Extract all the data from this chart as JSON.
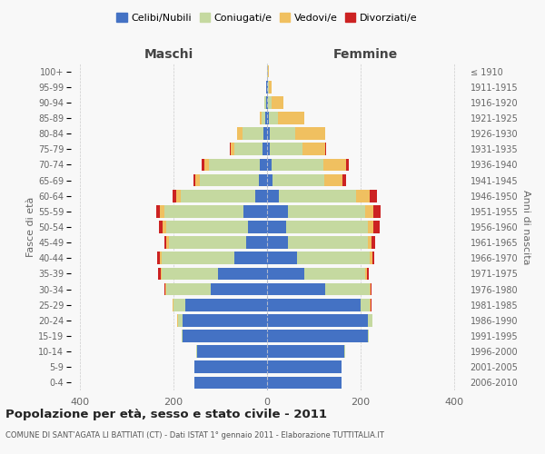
{
  "age_groups": [
    "0-4",
    "5-9",
    "10-14",
    "15-19",
    "20-24",
    "25-29",
    "30-34",
    "35-39",
    "40-44",
    "45-49",
    "50-54",
    "55-59",
    "60-64",
    "65-69",
    "70-74",
    "75-79",
    "80-84",
    "85-89",
    "90-94",
    "95-99",
    "100+"
  ],
  "birth_years": [
    "2006-2010",
    "2001-2005",
    "1996-2000",
    "1991-1995",
    "1986-1990",
    "1981-1985",
    "1976-1980",
    "1971-1975",
    "1966-1970",
    "1961-1965",
    "1956-1960",
    "1951-1955",
    "1946-1950",
    "1941-1945",
    "1936-1940",
    "1931-1935",
    "1926-1930",
    "1921-1925",
    "1916-1920",
    "1911-1915",
    "≤ 1910"
  ],
  "colors": {
    "celibi": "#4472c4",
    "coniugati": "#c5d9a0",
    "vedovi": "#f0c060",
    "divorziati": "#cc2222"
  },
  "maschi": {
    "celibi": [
      155,
      155,
      150,
      180,
      180,
      175,
      120,
      105,
      70,
      45,
      40,
      50,
      25,
      18,
      15,
      10,
      8,
      3,
      2,
      1,
      0
    ],
    "coniugati": [
      0,
      0,
      2,
      3,
      10,
      25,
      95,
      120,
      155,
      165,
      175,
      170,
      160,
      125,
      110,
      60,
      45,
      8,
      3,
      1,
      0
    ],
    "vedovi": [
      0,
      0,
      0,
      0,
      2,
      2,
      2,
      3,
      5,
      5,
      8,
      10,
      10,
      10,
      10,
      8,
      12,
      5,
      1,
      0,
      0
    ],
    "divorziati": [
      0,
      0,
      0,
      0,
      0,
      0,
      3,
      5,
      5,
      5,
      8,
      8,
      8,
      5,
      5,
      2,
      0,
      0,
      0,
      0,
      0
    ]
  },
  "femmine": {
    "celibi": [
      160,
      160,
      165,
      215,
      215,
      200,
      125,
      80,
      65,
      45,
      40,
      45,
      25,
      12,
      10,
      5,
      5,
      4,
      2,
      1,
      0
    ],
    "coniugati": [
      0,
      0,
      2,
      3,
      10,
      20,
      95,
      130,
      155,
      170,
      175,
      165,
      165,
      110,
      110,
      70,
      55,
      20,
      8,
      3,
      1
    ],
    "vedovi": [
      0,
      0,
      0,
      0,
      0,
      2,
      2,
      3,
      5,
      8,
      12,
      18,
      30,
      40,
      50,
      50,
      65,
      55,
      25,
      5,
      2
    ],
    "divorziati": [
      0,
      0,
      0,
      0,
      0,
      2,
      2,
      5,
      5,
      8,
      15,
      15,
      15,
      8,
      5,
      2,
      0,
      0,
      0,
      0,
      0
    ]
  },
  "xlim": 420,
  "title": "Popolazione per età, sesso e stato civile - 2011",
  "subtitle": "COMUNE DI SANT’AGATA LI BATTIATI (CT) - Dati ISTAT 1° gennaio 2011 - Elaborazione TUTTITALIA.IT",
  "ylabel_left": "Fasce di età",
  "ylabel_right": "Anni di nascita",
  "xlabel_left": "Maschi",
  "xlabel_right": "Femmine",
  "bg_color": "#f8f8f8",
  "grid_color": "#cccccc"
}
